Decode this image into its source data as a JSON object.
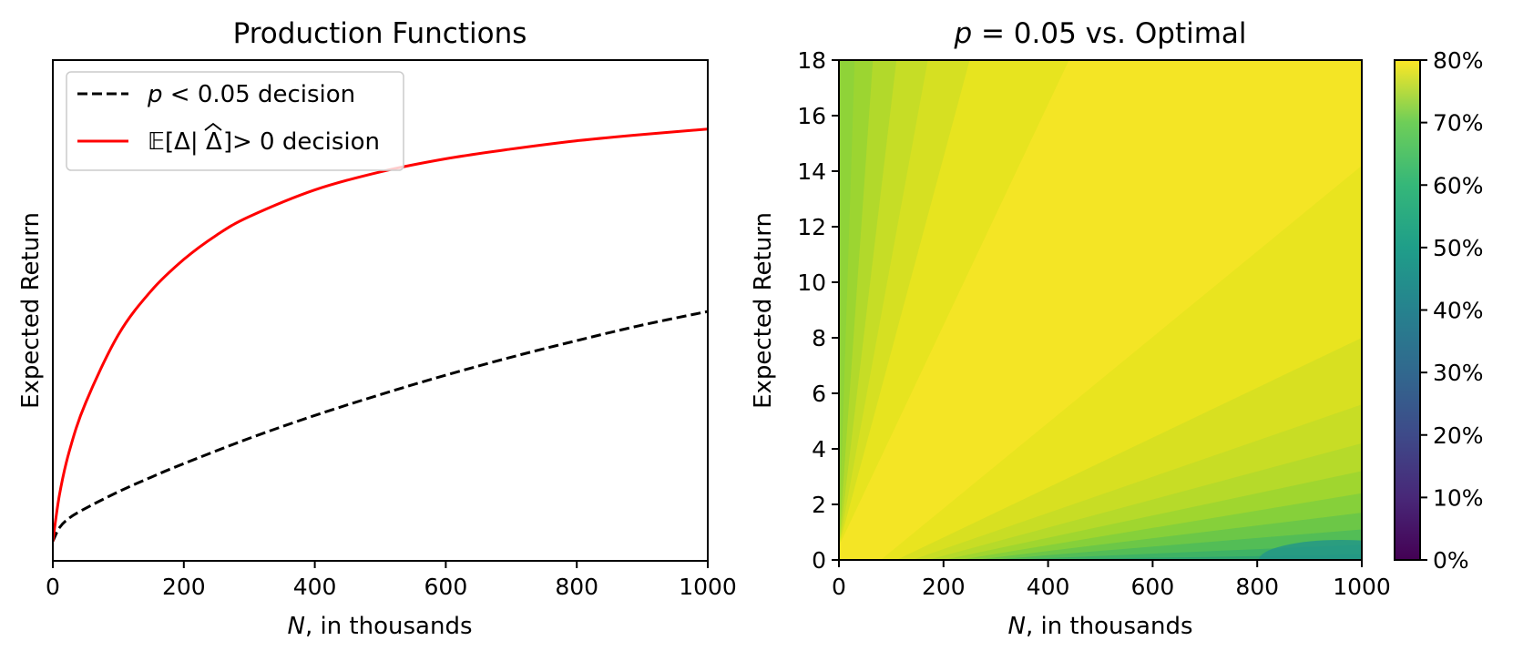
{
  "chart_data": [
    {
      "type": "line",
      "title": "Production Functions",
      "xlabel_var": "N",
      "xlabel_rest": ", in thousands",
      "ylabel": "Expected Return",
      "xlim": [
        0,
        1000
      ],
      "ylim": [
        -0.3,
        10
      ],
      "x_ticks": [
        "0",
        "200",
        "400",
        "600",
        "800",
        "1000"
      ],
      "y_ticks_shown": false,
      "legend_position": "upper-left",
      "series": [
        {
          "name": "p < 0.05 decision",
          "legend_var": "p",
          "legend_rest": " < 0.05 decision",
          "style": "dashed",
          "color": "#000000",
          "x": [
            0,
            10,
            25,
            50,
            100,
            150,
            200,
            300,
            400,
            500,
            600,
            700,
            800,
            900,
            1000
          ],
          "y": [
            0.1,
            0.38,
            0.58,
            0.78,
            1.12,
            1.42,
            1.7,
            2.22,
            2.69,
            3.12,
            3.52,
            3.89,
            4.23,
            4.55,
            4.83
          ]
        },
        {
          "name": "E[Δ|Δ̂] > 0 decision",
          "legend_rest": " > 0 decision",
          "style": "solid",
          "color": "#ff0000",
          "x": [
            0,
            10,
            25,
            50,
            100,
            150,
            200,
            250,
            300,
            400,
            500,
            600,
            700,
            800,
            900,
            1000
          ],
          "y": [
            0.1,
            1.05,
            1.95,
            2.95,
            4.35,
            5.25,
            5.9,
            6.4,
            6.78,
            7.33,
            7.7,
            7.97,
            8.17,
            8.34,
            8.47,
            8.58
          ]
        }
      ]
    },
    {
      "type": "heatmap",
      "title_var": "p",
      "title_rest": " = 0.05 vs. Optimal",
      "xlabel_var": "N",
      "xlabel_rest": ", in thousands",
      "ylabel": "Expected Return",
      "xlim": [
        0,
        1000
      ],
      "ylim": [
        0,
        18
      ],
      "x_ticks": [
        "0",
        "200",
        "400",
        "600",
        "800",
        "1000"
      ],
      "y_ticks": [
        "0",
        "2",
        "4",
        "6",
        "8",
        "10",
        "12",
        "14",
        "16",
        "18"
      ],
      "colorbar_ticks": [
        "0%",
        "10%",
        "20%",
        "30%",
        "40%",
        "50%",
        "60%",
        "70%",
        "80%"
      ],
      "colorbar_range": [
        0,
        80
      ],
      "colormap": "viridis",
      "note": "ratio is highest (~78%) along a diagonal band, lower near top-left corner (~65%) and bottom-right corner (~55%)"
    }
  ],
  "colors": {
    "dashed_series": "#000000",
    "solid_series": "#ff0000",
    "viridis_low": "#440154",
    "viridis_high": "#fde725"
  }
}
